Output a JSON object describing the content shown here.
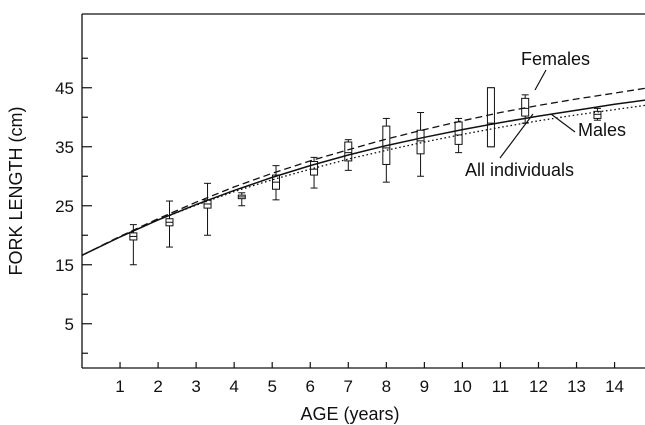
{
  "chart_data": {
    "type": "line",
    "title": "",
    "xlabel": "AGE (years)",
    "ylabel": "FORK LENGTH (cm)",
    "xlim": [
      0,
      14.8
    ],
    "ylim": [
      -2.5,
      57.5
    ],
    "xticks": [
      1,
      2,
      3,
      4,
      5,
      6,
      7,
      8,
      9,
      10,
      11,
      12,
      13,
      14
    ],
    "yticks_major": [
      5,
      15,
      25,
      35,
      45
    ],
    "yticks_minor": [
      0,
      10,
      20,
      30,
      40,
      50
    ],
    "grid": false,
    "legend": "none",
    "series": [
      {
        "name": "All individuals",
        "style": "solid",
        "x": [
          0,
          1,
          2,
          3,
          4,
          5,
          6,
          7,
          8,
          9,
          10,
          11,
          12,
          13,
          14,
          14.8
        ],
        "y": [
          16.6,
          19.7,
          22.6,
          25.2,
          27.6,
          29.8,
          31.8,
          33.6,
          35.2,
          36.6,
          37.9,
          39.1,
          40.2,
          41.2,
          42.2,
          42.9
        ]
      },
      {
        "name": "Females",
        "style": "dashed",
        "x": [
          0,
          1,
          2,
          3,
          4,
          5,
          6,
          7,
          8,
          9,
          10,
          11,
          12,
          13,
          14,
          14.8
        ],
        "y": [
          16.6,
          19.8,
          22.8,
          25.6,
          28.2,
          30.5,
          32.6,
          34.5,
          36.3,
          37.9,
          39.4,
          40.8,
          42.0,
          43.1,
          44.1,
          44.9
        ]
      },
      {
        "name": "Males",
        "style": "dotted",
        "x": [
          0,
          1,
          2,
          3,
          4,
          5,
          6,
          7,
          8,
          9,
          10,
          11,
          12,
          13,
          14,
          14.8
        ],
        "y": [
          16.6,
          19.7,
          22.6,
          25.1,
          27.4,
          29.4,
          31.2,
          32.9,
          34.4,
          35.8,
          37.1,
          38.3,
          39.4,
          40.4,
          41.3,
          42.0
        ]
      }
    ],
    "boxplots": [
      {
        "x": 1.35,
        "min": 15.0,
        "q1": 19.2,
        "median": 19.8,
        "q3": 20.4,
        "max": 21.8
      },
      {
        "x": 2.3,
        "min": 18.0,
        "q1": 21.6,
        "median": 22.2,
        "q3": 22.8,
        "max": 25.8
      },
      {
        "x": 3.3,
        "min": 20.0,
        "q1": 24.6,
        "median": 25.3,
        "q3": 26.0,
        "max": 28.8
      },
      {
        "x": 4.2,
        "min": 25.0,
        "q1": 26.2,
        "median": 26.5,
        "q3": 26.8,
        "max": 27.2
      },
      {
        "x": 5.1,
        "min": 26.0,
        "q1": 27.8,
        "median": 29.0,
        "q3": 30.2,
        "max": 31.8
      },
      {
        "x": 6.1,
        "min": 28.0,
        "q1": 30.2,
        "median": 31.2,
        "q3": 32.5,
        "max": 33.2
      },
      {
        "x": 7.0,
        "min": 31.0,
        "q1": 32.6,
        "median": 34.0,
        "q3": 35.8,
        "max": 36.2
      },
      {
        "x": 8.0,
        "min": 29.0,
        "q1": 32.0,
        "median": 34.8,
        "q3": 38.5,
        "max": 39.8
      },
      {
        "x": 8.9,
        "min": 30.0,
        "q1": 33.8,
        "median": 36.0,
        "q3": 37.8,
        "max": 40.8
      },
      {
        "x": 9.9,
        "min": 34.0,
        "q1": 35.4,
        "median": 37.0,
        "q3": 39.2,
        "max": 39.8
      },
      {
        "x": 10.75,
        "min": 35.0,
        "q1": 35.0,
        "median": 39.0,
        "q3": 45.0,
        "max": 45.0
      },
      {
        "x": 11.65,
        "min": 39.0,
        "q1": 40.2,
        "median": 41.5,
        "q3": 43.2,
        "max": 43.8
      },
      {
        "x": 13.55,
        "min": 39.5,
        "q1": 39.8,
        "median": 40.5,
        "q3": 41.0,
        "max": 41.5
      }
    ],
    "annotations": [
      {
        "text": "Females",
        "series": "Females"
      },
      {
        "text": "Males",
        "series": "Males"
      },
      {
        "text": "All individuals",
        "series": "All individuals"
      }
    ]
  }
}
